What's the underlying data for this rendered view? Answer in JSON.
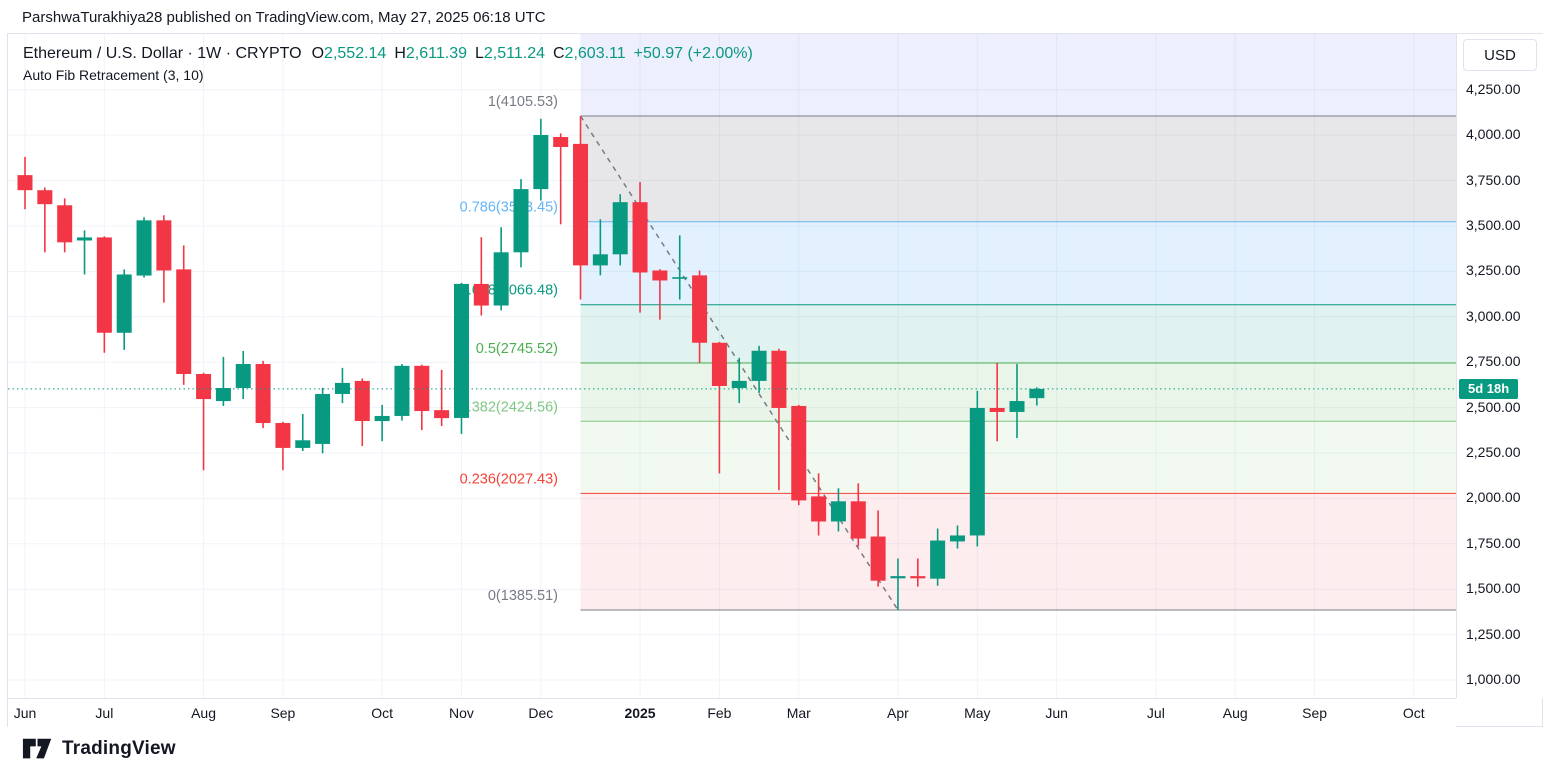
{
  "published_bar": {
    "text": "ParshwaTurakhiya28 published on TradingView.com, May 27, 2025 06:18 UTC"
  },
  "header": {
    "title_left": "Ethereum / U.S. Dollar · 1W · CRYPTO",
    "ohlc": {
      "o_label": "O",
      "o_value": "2,552.14",
      "h_label": "H",
      "h_value": "2,611.39",
      "l_label": "L",
      "l_value": "2,511.24",
      "c_label": "C",
      "c_value": "2,603.11",
      "change": "+50.97 (+2.00%)"
    },
    "indicator": "Auto Fib Retracement (3, 10)"
  },
  "price_axis": {
    "currency": "USD",
    "countdown": "5d 18h",
    "ticks": [
      {
        "label": "4,250.00",
        "value": 4250
      },
      {
        "label": "4,000.00",
        "value": 4000
      },
      {
        "label": "3,750.00",
        "value": 3750
      },
      {
        "label": "3,500.00",
        "value": 3500
      },
      {
        "label": "3,250.00",
        "value": 3250
      },
      {
        "label": "3,000.00",
        "value": 3000
      },
      {
        "label": "2,750.00",
        "value": 2750
      },
      {
        "label": "2,500.00",
        "value": 2500
      },
      {
        "label": "2,250.00",
        "value": 2250
      },
      {
        "label": "2,000.00",
        "value": 2000
      },
      {
        "label": "1,750.00",
        "value": 1750
      },
      {
        "label": "1,500.00",
        "value": 1500
      },
      {
        "label": "1,250.00",
        "value": 1250
      },
      {
        "label": "1,000.00",
        "value": 1000
      }
    ]
  },
  "time_axis": {
    "labels": [
      {
        "label": "Jun",
        "week": 0,
        "bold": false
      },
      {
        "label": "Jul",
        "week": 4,
        "bold": false
      },
      {
        "label": "Aug",
        "week": 9,
        "bold": false
      },
      {
        "label": "Sep",
        "week": 13,
        "bold": false
      },
      {
        "label": "Oct",
        "week": 18,
        "bold": false
      },
      {
        "label": "Nov",
        "week": 22,
        "bold": false
      },
      {
        "label": "Dec",
        "week": 26,
        "bold": false
      },
      {
        "label": "2025",
        "week": 31,
        "bold": true
      },
      {
        "label": "Feb",
        "week": 35,
        "bold": false
      },
      {
        "label": "Mar",
        "week": 39,
        "bold": false
      },
      {
        "label": "Apr",
        "week": 44,
        "bold": false
      },
      {
        "label": "May",
        "week": 48,
        "bold": false
      },
      {
        "label": "Jun",
        "week": 52,
        "bold": false
      },
      {
        "label": "Jul",
        "week": 57,
        "bold": false
      },
      {
        "label": "Aug",
        "week": 61,
        "bold": false
      },
      {
        "label": "Sep",
        "week": 65,
        "bold": false
      },
      {
        "label": "Oct",
        "week": 70,
        "bold": false
      }
    ]
  },
  "footer": {
    "brand": "TradingView"
  },
  "colors": {
    "up": "#089981",
    "down": "#f23645",
    "grid": "#f0f3fa",
    "border": "#e0e3eb",
    "text": "#131722",
    "muted": "#787b86",
    "value_teal": "#089981"
  },
  "chart_data": {
    "type": "candlestick",
    "symbol": "Ethereum / U.S. Dollar",
    "interval": "1W",
    "exchange": "CRYPTO",
    "title": "Ethereum / U.S. Dollar · 1W · CRYPTO",
    "x_span": "Jun 2024 - Oct 2025 (weekly)",
    "y_range_visible": [
      1000,
      4250
    ],
    "grid": true,
    "current_price": 2603.11,
    "price_line_color": "#089981",
    "last_bar": {
      "open": 2552.14,
      "high": 2611.39,
      "low": 2511.24,
      "close": 2603.11,
      "change": "+50.97 (+2.00%)"
    },
    "candles_ohlc": [
      [
        3780,
        3880,
        3592,
        3697
      ],
      [
        3697,
        3712,
        3355,
        3620
      ],
      [
        3614,
        3652,
        3355,
        3410
      ],
      [
        3420,
        3476,
        3233,
        3437
      ],
      [
        3437,
        3443,
        2802,
        2912
      ],
      [
        2912,
        3261,
        2818,
        3233
      ],
      [
        3227,
        3548,
        3216,
        3531
      ],
      [
        3531,
        3559,
        3078,
        3255
      ],
      [
        3261,
        3393,
        2625,
        2685
      ],
      [
        2685,
        2692,
        2155,
        2547
      ],
      [
        2536,
        2779,
        2509,
        2608
      ],
      [
        2608,
        2812,
        2547,
        2740
      ],
      [
        2740,
        2757,
        2387,
        2415
      ],
      [
        2415,
        2422,
        2155,
        2278
      ],
      [
        2278,
        2465,
        2261,
        2320
      ],
      [
        2300,
        2609,
        2248,
        2575
      ],
      [
        2575,
        2719,
        2525,
        2636
      ],
      [
        2647,
        2660,
        2288,
        2426
      ],
      [
        2426,
        2515,
        2315,
        2454
      ],
      [
        2454,
        2740,
        2428,
        2730
      ],
      [
        2730,
        2736,
        2376,
        2481
      ],
      [
        2486,
        2708,
        2398,
        2442
      ],
      [
        2443,
        3187,
        2355,
        3181
      ],
      [
        3181,
        3438,
        3007,
        3062
      ],
      [
        3062,
        3493,
        3035,
        3355
      ],
      [
        3355,
        3758,
        3272,
        3703
      ],
      [
        3703,
        4090,
        3640,
        4001
      ],
      [
        3990,
        4010,
        3509,
        3935
      ],
      [
        3952,
        4105.53,
        3095,
        3283
      ],
      [
        3283,
        3537,
        3228,
        3344
      ],
      [
        3344,
        3675,
        3283,
        3631
      ],
      [
        3631,
        3742,
        3023,
        3244
      ],
      [
        3255,
        3262,
        2984,
        3200
      ],
      [
        3214,
        3448,
        3095,
        3218
      ],
      [
        3228,
        3255,
        2747,
        2857
      ],
      [
        2857,
        2862,
        2138,
        2619
      ],
      [
        2608,
        2774,
        2525,
        2647
      ],
      [
        2647,
        2840,
        2581,
        2813
      ],
      [
        2813,
        2824,
        2045,
        2498
      ],
      [
        2509,
        2515,
        1962,
        1989
      ],
      [
        2011,
        2138,
        1796,
        1873
      ],
      [
        1873,
        2056,
        1818,
        1984
      ],
      [
        1984,
        2083,
        1735,
        1779
      ],
      [
        1790,
        1934,
        1514,
        1547
      ],
      [
        1560,
        1669,
        1385.51,
        1572
      ],
      [
        1572,
        1669,
        1514,
        1560
      ],
      [
        1558,
        1834,
        1519,
        1768
      ],
      [
        1763,
        1851,
        1724,
        1796
      ],
      [
        1796,
        2592,
        1735,
        2498
      ],
      [
        2498,
        2745,
        2315,
        2476
      ],
      [
        2476,
        2740,
        2332,
        2536
      ],
      [
        2552.14,
        2611.39,
        2511.24,
        2603.11
      ]
    ],
    "fib": {
      "name": "Auto Fib Retracement (3, 10)",
      "high_anchor": {
        "price": 4105.53,
        "candle_index": 28
      },
      "low_anchor": {
        "price": 1385.51,
        "candle_index": 44
      },
      "trend_line_style": "dashed",
      "levels": [
        {
          "level": "1",
          "price": 4105.53,
          "label": "1(4105.53)",
          "color": "#787b86"
        },
        {
          "level": "0.786",
          "price": 3523.45,
          "label": "0.786(3523.45)",
          "color": "#64b5f6"
        },
        {
          "level": "0.618",
          "price": 3066.48,
          "label": "0.618(3066.48)",
          "color": "#089981"
        },
        {
          "level": "0.5",
          "price": 2745.52,
          "label": "0.5(2745.52)",
          "color": "#4caf50"
        },
        {
          "level": "0.382",
          "price": 2424.56,
          "label": "0.382(2424.56)",
          "color": "#81c784"
        },
        {
          "level": "0.236",
          "price": 2027.43,
          "label": "0.236(2027.43)",
          "color": "#f44336"
        },
        {
          "level": "0",
          "price": 1385.51,
          "label": "0(1385.51)",
          "color": "#787b86"
        }
      ],
      "bands": [
        {
          "top_price": null,
          "bottom_price": 4105.53,
          "color": "rgba(78,98,235,0.10)"
        },
        {
          "top_price": 4105.53,
          "bottom_price": 3523.45,
          "color": "rgba(120,123,134,0.18)"
        },
        {
          "top_price": 3523.45,
          "bottom_price": 3066.48,
          "color": "rgba(33,150,243,0.13)"
        },
        {
          "top_price": 3066.48,
          "bottom_price": 2745.52,
          "color": "rgba(8,153,129,0.12)"
        },
        {
          "top_price": 2745.52,
          "bottom_price": 2424.56,
          "color": "rgba(76,175,80,0.13)"
        },
        {
          "top_price": 2424.56,
          "bottom_price": 2027.43,
          "color": "rgba(129,199,132,0.11)"
        },
        {
          "top_price": 2027.43,
          "bottom_price": 1385.51,
          "color": "rgba(247,82,95,0.10)"
        }
      ]
    }
  }
}
